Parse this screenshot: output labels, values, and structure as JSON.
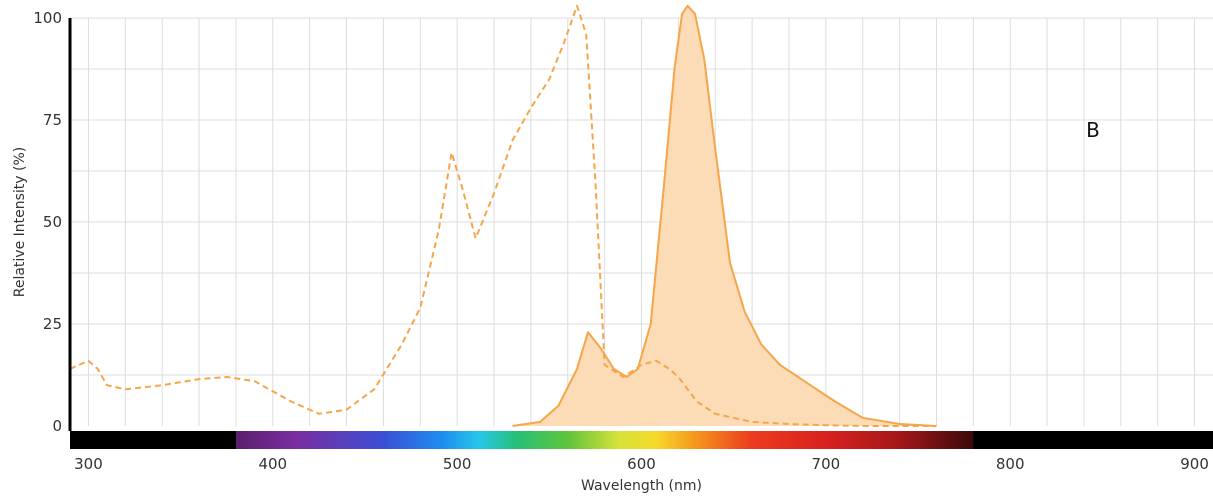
{
  "chart_data": {
    "type": "line",
    "title": "",
    "panel_label": "B",
    "xlabel": "Wavelength (nm)",
    "ylabel": "Relative Intensity (%)",
    "xlim": [
      290,
      910
    ],
    "ylim": [
      0,
      100
    ],
    "grid": true,
    "x_ticks": [
      300,
      400,
      500,
      600,
      700,
      800,
      900
    ],
    "y_ticks": [
      0,
      25,
      50,
      75,
      100
    ],
    "spectrum_bar": {
      "visible_start": 380,
      "visible_end": 780
    },
    "colors": {
      "series": "#f5a54a",
      "fill": "#fbdcb6",
      "grid": "#dddddd",
      "axis": "#000000"
    },
    "series": [
      {
        "style": "dashed",
        "fill": false,
        "x": [
          290,
          300,
          305,
          310,
          320,
          340,
          360,
          375,
          390,
          410,
          425,
          440,
          455,
          470,
          480,
          490,
          497,
          503,
          510,
          520,
          530,
          540,
          550,
          558,
          565,
          570,
          575,
          580,
          590,
          600,
          608,
          615,
          620,
          630,
          640,
          660,
          680,
          700,
          720,
          740,
          760
        ],
        "y": [
          14,
          16,
          14,
          10,
          9,
          10,
          11.5,
          12,
          11,
          6,
          3,
          4,
          9,
          20,
          29,
          48,
          67,
          58,
          46,
          57,
          70,
          78,
          85,
          94,
          103,
          96,
          60,
          15,
          12,
          15,
          16,
          14,
          12,
          6,
          3,
          1,
          0.5,
          0.2,
          0,
          0,
          0
        ]
      },
      {
        "style": "solid",
        "fill": true,
        "x": [
          530,
          545,
          555,
          565,
          571,
          578,
          585,
          592,
          598,
          605,
          612,
          618,
          622,
          625,
          629,
          634,
          640,
          648,
          656,
          665,
          675,
          685,
          695,
          705,
          720,
          740,
          760
        ],
        "y": [
          0,
          1,
          5,
          14,
          23,
          19,
          14,
          12,
          14,
          25,
          58,
          88,
          101,
          103,
          101,
          90,
          68,
          40,
          28,
          20,
          15,
          12,
          9,
          6,
          2,
          0.5,
          0
        ]
      }
    ]
  }
}
